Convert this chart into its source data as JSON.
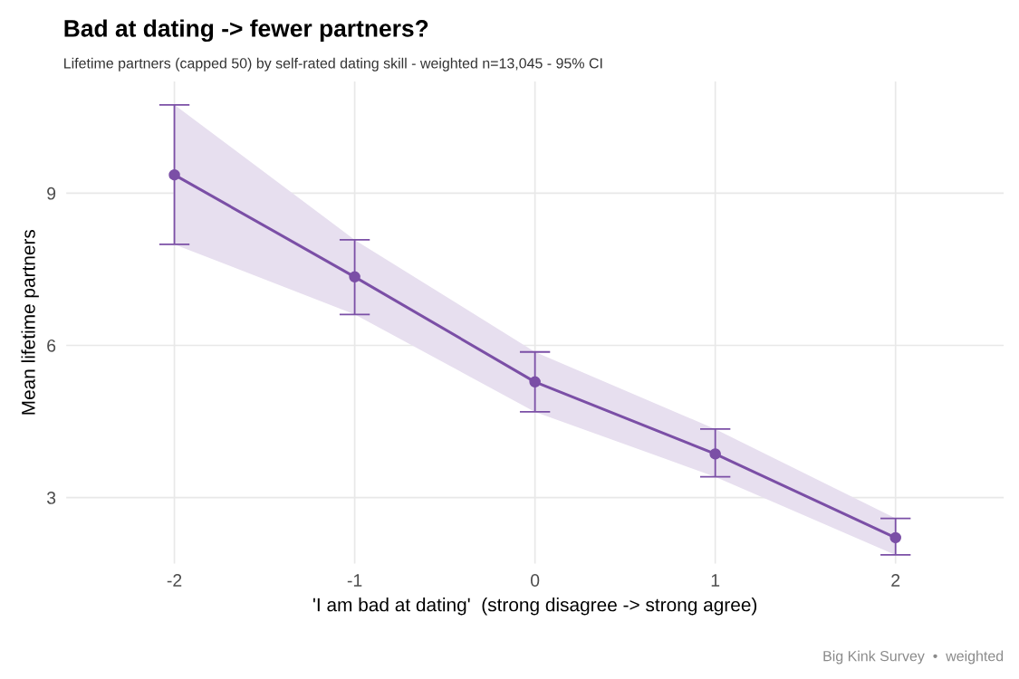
{
  "chart_data": {
    "type": "line",
    "title": "Bad at dating -> fewer partners?",
    "subtitle": "Lifetime partners (capped 50) by self-rated dating skill - weighted n=13,045 - 95% CI",
    "xlabel": "'I am bad at dating'  (strong disagree -> strong agree)",
    "ylabel": "Mean lifetime partners",
    "annotations": [
      "Big Kink Survey  •  weighted"
    ],
    "x": [
      -2,
      -1,
      0,
      1,
      2
    ],
    "series": [
      {
        "color": "#7b4fa6",
        "values": [
          9.36,
          7.35,
          5.28,
          3.86,
          2.21
        ],
        "errors": [
          [
            7.99,
            10.74
          ],
          [
            6.61,
            8.08
          ],
          [
            4.69,
            5.87
          ],
          [
            3.41,
            4.35
          ],
          [
            1.87,
            2.59
          ]
        ],
        "lower": [
          7.99,
          6.61,
          4.69,
          3.41,
          1.87
        ],
        "upper": [
          10.74,
          8.08,
          5.87,
          4.35,
          2.59
        ]
      }
    ],
    "xlim": [
      -2.6,
      2.6
    ],
    "ylim": [
      1.7,
      11.2
    ],
    "xticks": [
      -2,
      -1,
      0,
      1,
      2
    ],
    "yticks": [
      3,
      6,
      9
    ],
    "grid": true,
    "marker": "circle",
    "line_style": "solid"
  }
}
